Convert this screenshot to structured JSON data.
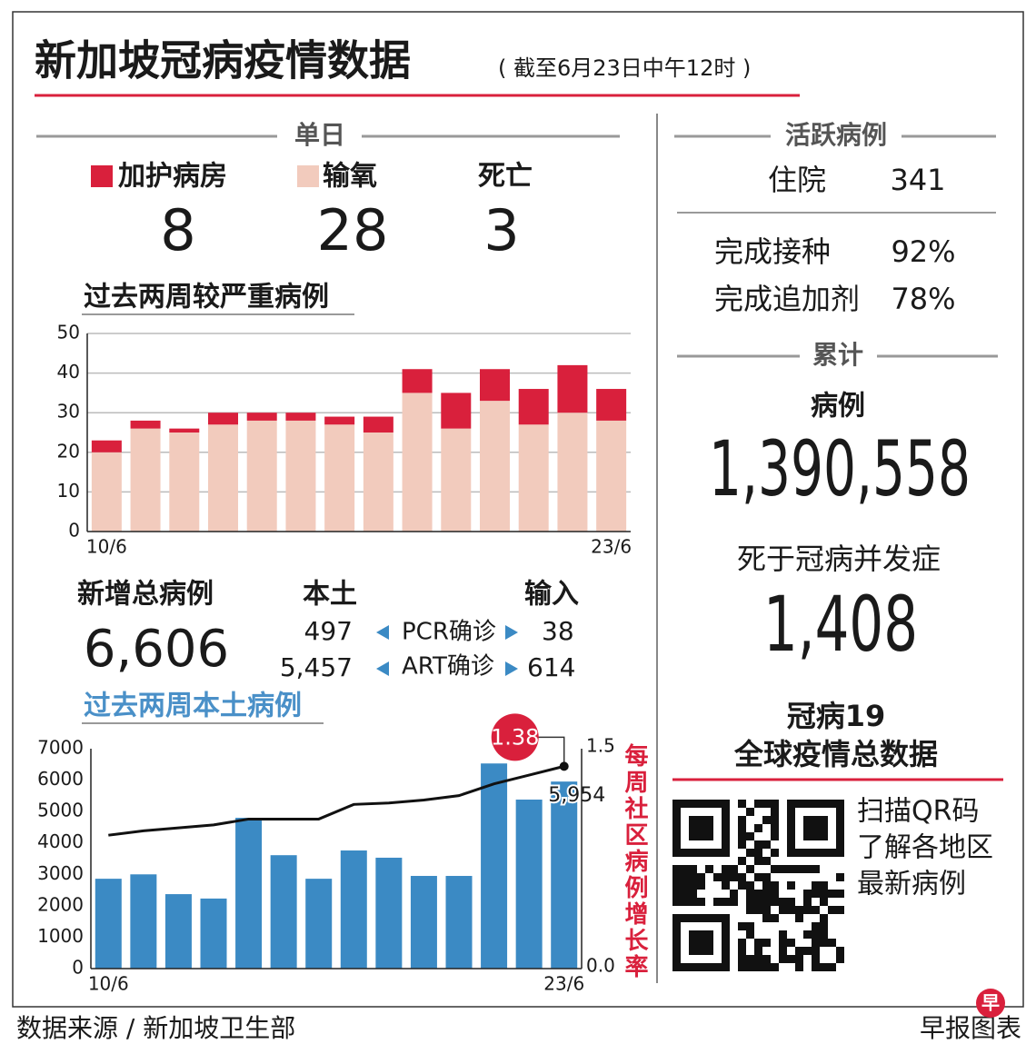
{
  "title": "新加坡冠病疫情数据",
  "subtitle": "( 截至6月23日中午12时 )",
  "daily": {
    "heading": "单日",
    "death_label": "死亡",
    "values": [
      8,
      28,
      3
    ]
  },
  "chart_data": [
    {
      "type": "stacked_bar",
      "title": "过去两周较严重病例",
      "categories": [
        "10/6",
        null,
        null,
        null,
        null,
        null,
        null,
        null,
        null,
        null,
        null,
        null,
        null,
        "23/6"
      ],
      "series": [
        {
          "name": "输氧",
          "color": "#f2cbbd",
          "values": [
            20,
            26,
            25,
            27,
            28,
            28,
            27,
            25,
            35,
            26,
            33,
            27,
            30,
            28
          ]
        },
        {
          "name": "加护病房",
          "color": "#d9203c",
          "values": [
            3,
            2,
            1,
            3,
            2,
            2,
            2,
            4,
            6,
            9,
            8,
            9,
            12,
            8
          ]
        }
      ],
      "ylim": [
        0,
        50
      ],
      "yticks": [
        0,
        10,
        20,
        30,
        40,
        50
      ],
      "grid": true
    },
    {
      "type": "bar_line",
      "title": "过去两周本土病例",
      "title_color": "#4a90c8",
      "categories": [
        "10/6",
        null,
        null,
        null,
        null,
        null,
        null,
        null,
        null,
        null,
        null,
        null,
        null,
        "23/6"
      ],
      "series": [
        {
          "type": "bar",
          "color": "#3b8ac4",
          "values": [
            2860,
            3000,
            2370,
            2230,
            4800,
            3610,
            2860,
            3760,
            3530,
            2950,
            2950,
            6530,
            5380,
            5954
          ],
          "value_labels": [
            null,
            null,
            null,
            null,
            null,
            null,
            null,
            null,
            null,
            null,
            null,
            null,
            null,
            "5,954"
          ]
        },
        {
          "type": "line",
          "axis": "y2",
          "color": "#111111",
          "values": [
            0.91,
            0.94,
            0.96,
            0.98,
            1.02,
            1.02,
            1.02,
            1.12,
            1.13,
            1.15,
            1.18,
            1.26,
            1.32,
            1.38
          ],
          "value_labels": [
            null,
            null,
            null,
            null,
            null,
            null,
            null,
            null,
            null,
            null,
            null,
            null,
            null,
            "1.38"
          ]
        }
      ],
      "ylim": [
        0,
        7000
      ],
      "yticks": [
        0,
        1000,
        2000,
        3000,
        4000,
        5000,
        6000,
        7000
      ],
      "y2lim": [
        0,
        1.5
      ],
      "y2ticks": [
        {
          "value": 0,
          "label": "0.0"
        },
        1.5
      ],
      "y2label": "每周社区病例增长率",
      "annotation_color": "#d9203c"
    }
  ],
  "new_cases": {
    "label": "新增总病例",
    "total": "6,606",
    "local_label": "本土",
    "imported_label": "输入",
    "rows": [
      {
        "local": 497,
        "method": "PCR确诊",
        "imported": 38
      },
      {
        "local": "5,457",
        "method": "ART确诊",
        "imported": 614
      }
    ]
  },
  "active": {
    "heading": "活跃病例",
    "hospital_label": "住院",
    "hospital": 341,
    "vaccinated_label": "完成接种",
    "vaccinated": "92%",
    "booster_label": "完成追加剂",
    "booster": "78%"
  },
  "cumulative": {
    "heading": "累计",
    "cases_label": "病例",
    "cases": "1,390,558",
    "deaths_label": "死于冠病并发症",
    "deaths": "1,408"
  },
  "global": {
    "title": [
      "冠病19",
      "全球疫情总数据"
    ],
    "qr_text": [
      "扫描QR码",
      "了解各地区",
      "最新病例"
    ]
  },
  "footer": {
    "source": "数据来源 / 新加坡卫生部",
    "credit": "早报图表",
    "logo": "早"
  }
}
